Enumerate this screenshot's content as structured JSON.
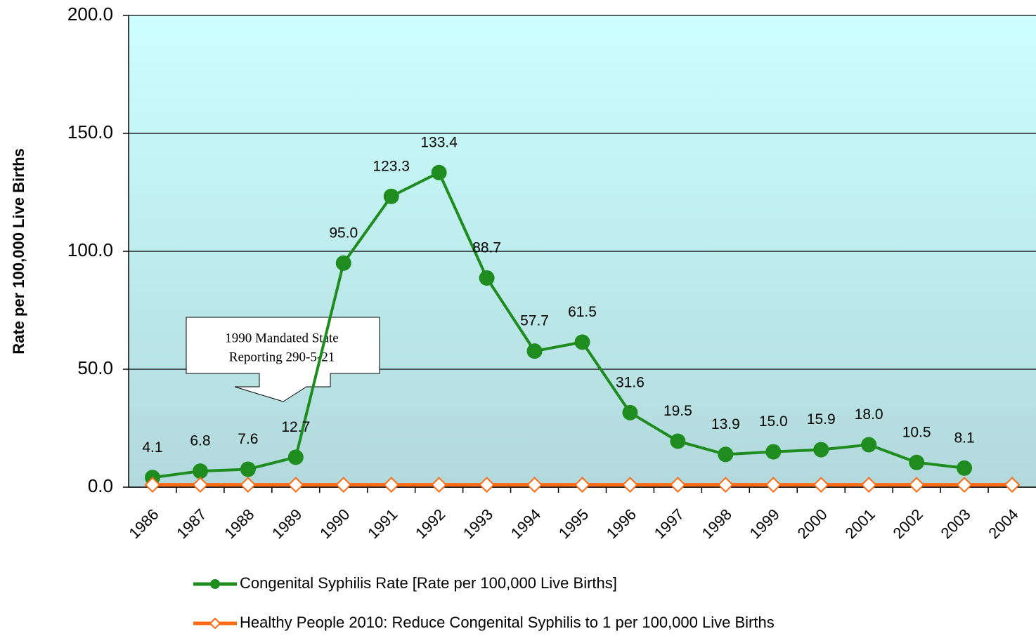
{
  "chart_data": {
    "type": "line",
    "y_label": "Rate per 100,000 Live Births",
    "categories": [
      "1986",
      "1987",
      "1988",
      "1989",
      "1990",
      "1991",
      "1992",
      "1993",
      "1994",
      "1995",
      "1996",
      "1997",
      "1998",
      "1999",
      "2000",
      "2001",
      "2002",
      "2003",
      "2004"
    ],
    "series": [
      {
        "name": "Congenital Syphilis Rate [Rate per 100,000 Live Births]",
        "color": "#1e8c1e",
        "marker": "circle",
        "values": [
          4.1,
          6.8,
          7.6,
          12.7,
          95.0,
          123.3,
          133.4,
          88.7,
          57.7,
          61.5,
          31.6,
          19.5,
          13.9,
          15.0,
          15.9,
          18.0,
          10.5,
          8.1,
          null
        ],
        "value_labels": [
          "4.1",
          "6.8",
          "7.6",
          "12.7",
          "95.0",
          "123.3",
          "133.4",
          "88.7",
          "57.7",
          "61.5",
          "31.6",
          "19.5",
          "13.9",
          "15.0",
          "15.9",
          "18.0",
          "10.5",
          "8.1",
          null
        ]
      },
      {
        "name": "Healthy People 2010:  Reduce Congenital Syphilis to 1 per 100,000 Live Births",
        "color": "#ff6a13",
        "marker": "diamond",
        "values": [
          1,
          1,
          1,
          1,
          1,
          1,
          1,
          1,
          1,
          1,
          1,
          1,
          1,
          1,
          1,
          1,
          1,
          1,
          1
        ]
      }
    ],
    "ylim": [
      0,
      200
    ],
    "yticks": [
      {
        "value": 0,
        "label": "0.0"
      },
      {
        "value": 50,
        "label": "50.0"
      },
      {
        "value": 100,
        "label": "100.0"
      },
      {
        "value": 150,
        "label": "150.0"
      },
      {
        "value": 200,
        "label": "200.0"
      }
    ],
    "grid": true,
    "legend": "bottom",
    "annotation": [
      "1990 Mandated State",
      "Reporting 290-5-21"
    ]
  }
}
